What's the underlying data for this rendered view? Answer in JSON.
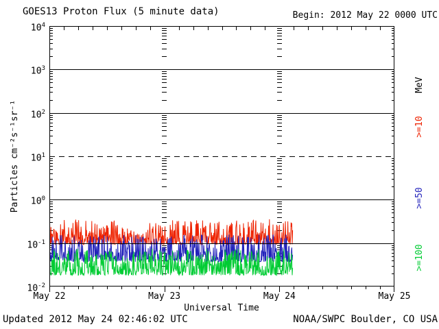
{
  "header": {
    "title": "GOES13 Proton Flux (5 minute data)",
    "begin_label": "Begin: 2012 May 22 0000 UTC"
  },
  "axes": {
    "y_label": "Particles cm⁻²s⁻¹sr⁻¹",
    "x_label": "Universal Time",
    "unit_label": "MeV",
    "y_tick_base": "10",
    "y_exponents": [
      4,
      3,
      2,
      1,
      0,
      -1,
      -2
    ],
    "x_ticks": [
      "May 22",
      "May 23",
      "May 24",
      "May 25"
    ]
  },
  "footer": {
    "updated": "Updated 2012 May 24 02:46:02 UTC",
    "source": "NOAA/SWPC Boulder, CO USA"
  },
  "chart_data": {
    "type": "line",
    "title": "GOES13 Proton Flux (5 minute data)",
    "x_axis": {
      "label": "Universal Time",
      "start": "2012 May 22 0000 UTC",
      "end": "2012 May 25 0000 UTC",
      "tick_labels": [
        "May 22",
        "May 23",
        "May 24",
        "May 25"
      ],
      "minor_tick_hours": 3
    },
    "y_axis": {
      "label": "Particles cm⁻²s⁻¹sr⁻¹",
      "scale": "log",
      "range": [
        0.01,
        10000
      ],
      "tick_exponents": [
        4,
        3,
        2,
        1,
        0,
        -1,
        -2
      ]
    },
    "gridlines_solid": [
      1000,
      100,
      1,
      0.1
    ],
    "gridlines_dashed": [
      10
    ],
    "day_boundary_gridlines": [
      "May 23",
      "May 24"
    ],
    "legend_position": "right-rotated",
    "points_per_day": 288,
    "days_of_data": 2.115,
    "data_coverage": "2012 May 22 0000 UTC to 2012 May 24 ~0245 UTC",
    "seed": 20120524,
    "series": [
      {
        "name": ">=10",
        "units": "MeV",
        "color": "#ee2200",
        "approx_baseline_flux": 0.13,
        "approx_min": 0.09,
        "approx_max": 0.4,
        "log10_lo": -1.03,
        "log10_hi": -0.45,
        "skew": 2.2,
        "initial_spike_boost": 0.18
      },
      {
        "name": ">=50",
        "units": "MeV",
        "color": "#2222bb",
        "approx_baseline_flux": 0.055,
        "approx_min": 0.038,
        "approx_max": 0.16,
        "log10_lo": -1.43,
        "log10_hi": -0.8,
        "skew": 2.0,
        "initial_spike_boost": 0
      },
      {
        "name": ">=100",
        "units": "MeV",
        "color": "#00cc33",
        "approx_baseline_flux": 0.027,
        "approx_min": 0.018,
        "approx_max": 0.074,
        "log10_lo": -1.74,
        "log10_hi": -1.13,
        "skew": 1.9,
        "initial_spike_boost": 0
      }
    ]
  }
}
